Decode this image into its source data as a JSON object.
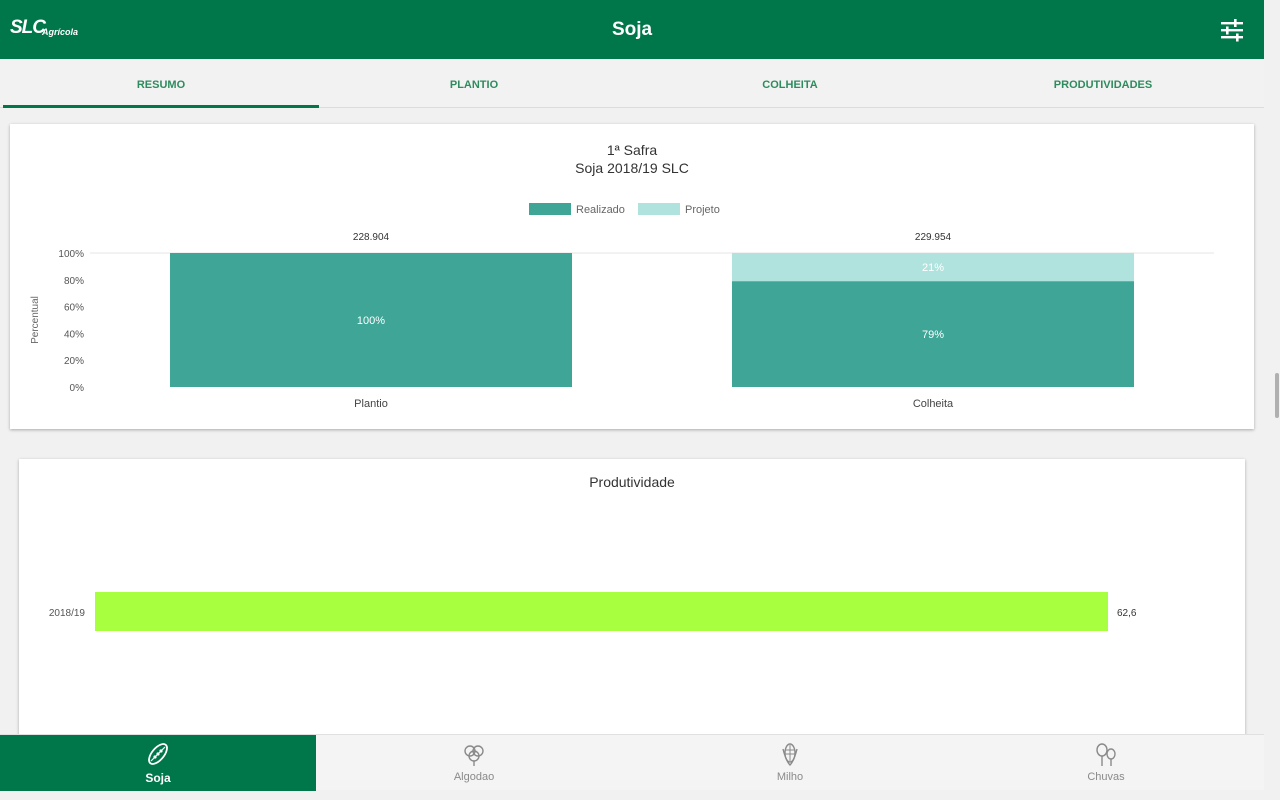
{
  "header": {
    "logo_main": "SLC",
    "logo_sub": "Agrícola",
    "title": "Soja",
    "filter_icon": "sliders-icon"
  },
  "tabs": [
    {
      "label": "RESUMO",
      "active": true
    },
    {
      "label": "PLANTIO",
      "active": false
    },
    {
      "label": "COLHEITA",
      "active": false
    },
    {
      "label": "PRODUTIVIDADES",
      "active": false
    }
  ],
  "colors": {
    "brand": "#00774a",
    "realizado": "#3ea597",
    "projeto": "#b0e3dd",
    "produtividade": "#a8ff40"
  },
  "chart_data": [
    {
      "type": "bar",
      "stacked": true,
      "title": "1ª Safra",
      "subtitle": "Soja 2018/19 SLC",
      "ylabel": "Percentual",
      "ylim": [
        0,
        100
      ],
      "yticks": [
        "0%",
        "20%",
        "40%",
        "60%",
        "80%",
        "100%"
      ],
      "yticks_values": [
        0,
        20,
        40,
        60,
        80,
        100
      ],
      "legend_position": "top",
      "categories": [
        "Plantio",
        "Colheita"
      ],
      "top_labels": [
        "228.904",
        "229.954"
      ],
      "series": [
        {
          "name": "Realizado",
          "values": [
            100,
            79
          ],
          "labels": [
            "100%",
            "79%"
          ]
        },
        {
          "name": "Projeto",
          "values": [
            0,
            21
          ],
          "labels": [
            "",
            "21%"
          ]
        }
      ]
    },
    {
      "type": "bar",
      "orientation": "horizontal",
      "title": "Produtividade",
      "categories": [
        "2018/19"
      ],
      "values": [
        62.6
      ],
      "labels": [
        "62,6"
      ]
    }
  ],
  "bottom_nav": [
    {
      "label": "Soja",
      "icon": "soy-leaf-icon",
      "active": true
    },
    {
      "label": "Algodao",
      "icon": "cotton-icon",
      "active": false
    },
    {
      "label": "Milho",
      "icon": "corn-icon",
      "active": false
    },
    {
      "label": "Chuvas",
      "icon": "rain-tree-icon",
      "active": false
    }
  ]
}
